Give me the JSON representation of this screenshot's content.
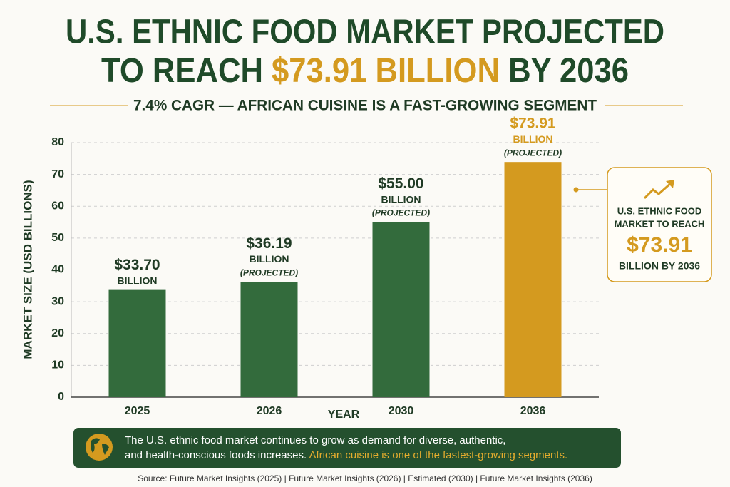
{
  "chart_data": {
    "type": "bar",
    "title": {
      "line1": "U.S. ETHNIC FOOD MARKET PROJECTED",
      "line2_start": "TO REACH",
      "line2_highlight": "$73.91 BILLION",
      "line2_end": "BY 2036"
    },
    "subtitle": "7.4% CAGR — AFRICAN CUISINE IS A FAST-GROWING SEGMENT",
    "y_label": "MARKET SIZE (USD BILLIONS)",
    "x_label": "YEAR",
    "categories": [
      "2025",
      "2026",
      "2030",
      "2036"
    ],
    "values": [
      33.7,
      36.19,
      55,
      73.91
    ],
    "value_labels": [
      "$33.70",
      "$36.19",
      "$55.00",
      "$73.91"
    ],
    "bar_notes": [
      [
        "BILLION"
      ],
      [
        "BILLION",
        "(PROJECTED)"
      ],
      [
        "BILLION",
        "(PROJECTED)"
      ],
      [
        "BILLION",
        "(PROJECTED)"
      ]
    ],
    "colors": [
      "#336b3c",
      "#336b3c",
      "#336b3c",
      "#d49a1f"
    ],
    "ylim": [
      0,
      80
    ],
    "yticks": [
      0,
      10,
      20,
      30,
      40,
      50,
      60,
      70,
      80
    ],
    "grid": true
  },
  "callout": {
    "lines": [
      "U.S. ETHNIC FOOD",
      "MARKET TO REACH"
    ],
    "value": "$73.91",
    "suffix": "BILLION BY 2036"
  },
  "footer": {
    "line1": "The U.S. ethnic food market continues to grow as demand for diverse, authentic,",
    "line2": "and health-conscious foods increases.",
    "highlight": "African cuisine is one of the fastest-growing segments."
  },
  "source": "Source: Future Market Insights (2025)  |  Future Market Insights (2026) | Estimated (2030)  |  Future Market Insights (2036)"
}
